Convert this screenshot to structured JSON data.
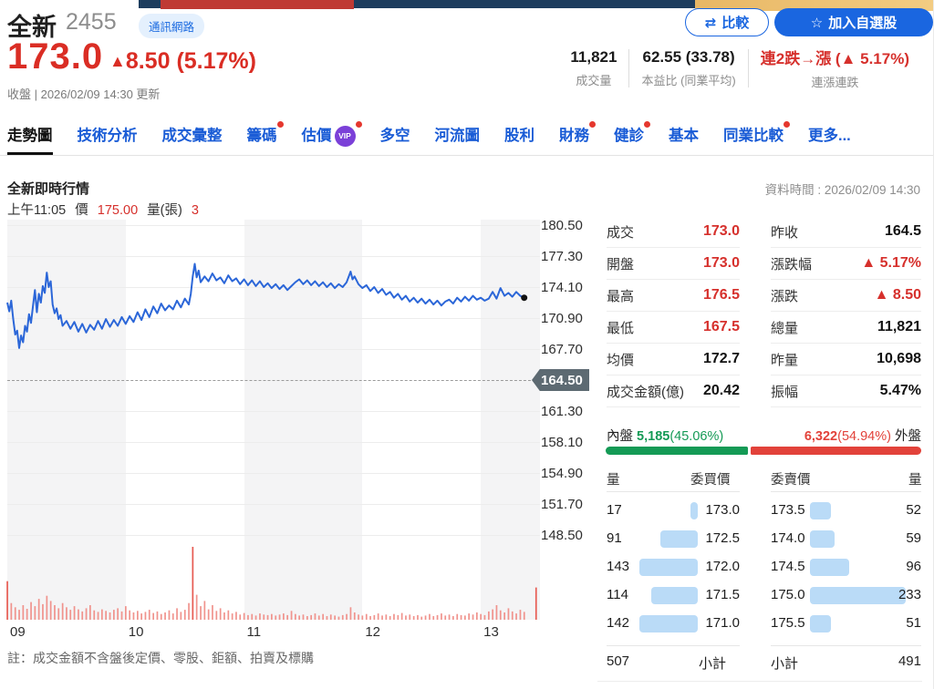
{
  "banner": {
    "navy": "#1d3d5e",
    "red": "#bf3a34",
    "orange": "#e8b765"
  },
  "header": {
    "stock_name": "全新",
    "stock_code": "2455",
    "industry_badge": "通訊網路",
    "compare_button": "比較",
    "watchlist_button": "加入自選股",
    "close_price": "173.0",
    "change_arrow": "▲",
    "change_value": "8.50",
    "change_pct": "(5.17%)",
    "update_note": "收盤 | 2026/02/09 14:30 更新",
    "stats": [
      {
        "value": "11,821",
        "label": "成交量",
        "red": false
      },
      {
        "value": "62.55 (33.78)",
        "label": "本益比 (同業平均)",
        "red": false
      },
      {
        "value": "連2跌→漲 (▲ 5.17%)",
        "label": "連漲連跌",
        "red": true
      }
    ]
  },
  "tabs": [
    {
      "label": "走勢圖",
      "active": true,
      "dot": false,
      "vip": false
    },
    {
      "label": "技術分析",
      "active": false,
      "dot": false,
      "vip": false
    },
    {
      "label": "成交彙整",
      "active": false,
      "dot": false,
      "vip": false
    },
    {
      "label": "籌碼",
      "active": false,
      "dot": true,
      "vip": false
    },
    {
      "label": "估價",
      "active": false,
      "dot": true,
      "vip": true
    },
    {
      "label": "多空",
      "active": false,
      "dot": false,
      "vip": false
    },
    {
      "label": "河流圖",
      "active": false,
      "dot": false,
      "vip": false
    },
    {
      "label": "股利",
      "active": false,
      "dot": false,
      "vip": false
    },
    {
      "label": "財務",
      "active": false,
      "dot": true,
      "vip": false
    },
    {
      "label": "健診",
      "active": false,
      "dot": true,
      "vip": false
    },
    {
      "label": "基本",
      "active": false,
      "dot": false,
      "vip": false
    },
    {
      "label": "同業比較",
      "active": false,
      "dot": true,
      "vip": false
    },
    {
      "label": "更多...",
      "active": false,
      "dot": false,
      "vip": false
    }
  ],
  "vip_text": "VIP",
  "chart_header": {
    "title": "全新即時行情",
    "data_time": "資料時間 : 2026/02/09 14:30",
    "tick": {
      "time": "上午11:05",
      "price_label": "價",
      "price": "175.00",
      "volume_label": "量(張)",
      "volume": "3"
    }
  },
  "chart_data": {
    "type": "line",
    "title": "全新即時行情 (intraday price + volume)",
    "x_ticks": [
      "09",
      "10",
      "11",
      "12",
      "13"
    ],
    "x_tick_minutes": [
      0,
      60,
      120,
      180,
      240
    ],
    "session_minutes": 270,
    "y_ticks": [
      "180.50",
      "177.30",
      "174.10",
      "170.90",
      "167.70",
      "164.50",
      "161.30",
      "158.10",
      "154.90",
      "151.70",
      "148.50"
    ],
    "y_max": 180.5,
    "y_step": 3.2,
    "prev_close": 164.5,
    "prev_close_label": "164.50",
    "last_price": 173.0,
    "day_open": 173.0,
    "day_high": 176.5,
    "day_low": 167.5,
    "price_line": [
      [
        0,
        172.5
      ],
      [
        1,
        171.6
      ],
      [
        2,
        172.7
      ],
      [
        3,
        170.8
      ],
      [
        4,
        169.2
      ],
      [
        5,
        169.6
      ],
      [
        6,
        167.8
      ],
      [
        7,
        169.1
      ],
      [
        8,
        168.4
      ],
      [
        9,
        170.1
      ],
      [
        10,
        169.5
      ],
      [
        11,
        171.3
      ],
      [
        12,
        170.4
      ],
      [
        13,
        172.1
      ],
      [
        14,
        173.8
      ],
      [
        15,
        171.5
      ],
      [
        16,
        173.4
      ],
      [
        17,
        172.5
      ],
      [
        18,
        174.2
      ],
      [
        19,
        173.5
      ],
      [
        20,
        175.6
      ],
      [
        21,
        174.1
      ],
      [
        22,
        174.7
      ],
      [
        23,
        172.3
      ],
      [
        24,
        171.4
      ],
      [
        25,
        171.9
      ],
      [
        26,
        170.8
      ],
      [
        27,
        171.2
      ],
      [
        28,
        170.1
      ],
      [
        30,
        170.6
      ],
      [
        32,
        169.8
      ],
      [
        34,
        170.5
      ],
      [
        36,
        169.5
      ],
      [
        38,
        170.3
      ],
      [
        40,
        169.4
      ],
      [
        42,
        170.2
      ],
      [
        44,
        169.7
      ],
      [
        46,
        170.6
      ],
      [
        48,
        169.8
      ],
      [
        50,
        170.8
      ],
      [
        52,
        170.0
      ],
      [
        54,
        170.7
      ],
      [
        56,
        170.1
      ],
      [
        58,
        171.0
      ],
      [
        60,
        170.3
      ],
      [
        62,
        171.1
      ],
      [
        64,
        170.5
      ],
      [
        66,
        171.5
      ],
      [
        68,
        170.7
      ],
      [
        70,
        171.8
      ],
      [
        72,
        171.0
      ],
      [
        74,
        172.1
      ],
      [
        76,
        171.4
      ],
      [
        78,
        172.4
      ],
      [
        80,
        171.7
      ],
      [
        82,
        172.2
      ],
      [
        84,
        171.8
      ],
      [
        86,
        172.7
      ],
      [
        88,
        172.0
      ],
      [
        90,
        172.9
      ],
      [
        92,
        172.3
      ],
      [
        93,
        173.4
      ],
      [
        94,
        175.2
      ],
      [
        95,
        176.5
      ],
      [
        96,
        175.1
      ],
      [
        97,
        175.8
      ],
      [
        98,
        174.6
      ],
      [
        100,
        175.2
      ],
      [
        102,
        174.7
      ],
      [
        104,
        175.5
      ],
      [
        106,
        174.8
      ],
      [
        108,
        175.1
      ],
      [
        110,
        174.5
      ],
      [
        112,
        175.3
      ],
      [
        114,
        174.7
      ],
      [
        116,
        175.0
      ],
      [
        118,
        174.4
      ],
      [
        120,
        174.9
      ],
      [
        122,
        174.3
      ],
      [
        124,
        174.8
      ],
      [
        126,
        174.2
      ],
      [
        128,
        174.7
      ],
      [
        130,
        174.1
      ],
      [
        132,
        174.5
      ],
      [
        134,
        174.0
      ],
      [
        136,
        174.4
      ],
      [
        138,
        173.9
      ],
      [
        140,
        174.3
      ],
      [
        142,
        173.8
      ],
      [
        144,
        174.2
      ],
      [
        146,
        174.6
      ],
      [
        148,
        174.9
      ],
      [
        150,
        174.4
      ],
      [
        152,
        174.8
      ],
      [
        154,
        174.3
      ],
      [
        156,
        174.7
      ],
      [
        158,
        174.2
      ],
      [
        160,
        174.6
      ],
      [
        162,
        174.1
      ],
      [
        164,
        174.5
      ],
      [
        166,
        174.0
      ],
      [
        168,
        174.4
      ],
      [
        170,
        174.1
      ],
      [
        172,
        174.6
      ],
      [
        174,
        175.7
      ],
      [
        175,
        174.9
      ],
      [
        176,
        175.2
      ],
      [
        178,
        174.4
      ],
      [
        180,
        174.0
      ],
      [
        182,
        174.3
      ],
      [
        184,
        173.7
      ],
      [
        186,
        174.1
      ],
      [
        188,
        173.5
      ],
      [
        190,
        173.9
      ],
      [
        192,
        173.3
      ],
      [
        194,
        173.6
      ],
      [
        196,
        173.0
      ],
      [
        198,
        173.4
      ],
      [
        200,
        172.8
      ],
      [
        202,
        173.2
      ],
      [
        204,
        172.6
      ],
      [
        206,
        173.0
      ],
      [
        208,
        172.5
      ],
      [
        210,
        172.9
      ],
      [
        212,
        172.4
      ],
      [
        214,
        172.8
      ],
      [
        216,
        172.3
      ],
      [
        218,
        172.7
      ],
      [
        220,
        172.2
      ],
      [
        222,
        172.6
      ],
      [
        224,
        172.8
      ],
      [
        226,
        172.4
      ],
      [
        228,
        173.0
      ],
      [
        230,
        172.6
      ],
      [
        232,
        173.1
      ],
      [
        234,
        172.7
      ],
      [
        236,
        173.2
      ],
      [
        238,
        172.8
      ],
      [
        240,
        173.0
      ],
      [
        242,
        172.7
      ],
      [
        244,
        172.9
      ],
      [
        246,
        173.6
      ],
      [
        248,
        172.9
      ],
      [
        250,
        174.0
      ],
      [
        252,
        173.2
      ],
      [
        254,
        173.5
      ],
      [
        256,
        173.1
      ],
      [
        258,
        173.6
      ],
      [
        260,
        173.2
      ],
      [
        262,
        173.0
      ]
    ],
    "volume_bars": [
      [
        0,
        370
      ],
      [
        2,
        160
      ],
      [
        4,
        120
      ],
      [
        6,
        95
      ],
      [
        8,
        140
      ],
      [
        10,
        105
      ],
      [
        12,
        170
      ],
      [
        14,
        130
      ],
      [
        16,
        200
      ],
      [
        18,
        150
      ],
      [
        20,
        230
      ],
      [
        22,
        180
      ],
      [
        24,
        140
      ],
      [
        26,
        110
      ],
      [
        28,
        160
      ],
      [
        30,
        120
      ],
      [
        32,
        95
      ],
      [
        34,
        130
      ],
      [
        36,
        100
      ],
      [
        38,
        80
      ],
      [
        40,
        110
      ],
      [
        42,
        140
      ],
      [
        44,
        90
      ],
      [
        46,
        75
      ],
      [
        48,
        100
      ],
      [
        50,
        85
      ],
      [
        52,
        70
      ],
      [
        54,
        95
      ],
      [
        56,
        110
      ],
      [
        58,
        80
      ],
      [
        60,
        130
      ],
      [
        62,
        90
      ],
      [
        64,
        70
      ],
      [
        66,
        85
      ],
      [
        68,
        60
      ],
      [
        70,
        75
      ],
      [
        72,
        95
      ],
      [
        74,
        65
      ],
      [
        76,
        80
      ],
      [
        78,
        55
      ],
      [
        80,
        70
      ],
      [
        82,
        90
      ],
      [
        84,
        60
      ],
      [
        86,
        110
      ],
      [
        88,
        75
      ],
      [
        90,
        95
      ],
      [
        92,
        160
      ],
      [
        94,
        700
      ],
      [
        96,
        240
      ],
      [
        98,
        130
      ],
      [
        100,
        180
      ],
      [
        102,
        100
      ],
      [
        104,
        140
      ],
      [
        106,
        85
      ],
      [
        108,
        110
      ],
      [
        110,
        70
      ],
      [
        112,
        90
      ],
      [
        114,
        60
      ],
      [
        116,
        75
      ],
      [
        118,
        50
      ],
      [
        120,
        65
      ],
      [
        122,
        45
      ],
      [
        124,
        55
      ],
      [
        126,
        40
      ],
      [
        128,
        60
      ],
      [
        130,
        50
      ],
      [
        132,
        45
      ],
      [
        134,
        55
      ],
      [
        136,
        40
      ],
      [
        138,
        50
      ],
      [
        140,
        60
      ],
      [
        142,
        45
      ],
      [
        144,
        85
      ],
      [
        146,
        55
      ],
      [
        148,
        40
      ],
      [
        150,
        50
      ],
      [
        152,
        35
      ],
      [
        154,
        45
      ],
      [
        156,
        60
      ],
      [
        158,
        40
      ],
      [
        160,
        55
      ],
      [
        162,
        35
      ],
      [
        164,
        50
      ],
      [
        166,
        40
      ],
      [
        168,
        30
      ],
      [
        170,
        45
      ],
      [
        172,
        55
      ],
      [
        174,
        120
      ],
      [
        176,
        70
      ],
      [
        178,
        50
      ],
      [
        180,
        40
      ],
      [
        182,
        55
      ],
      [
        184,
        35
      ],
      [
        186,
        45
      ],
      [
        188,
        60
      ],
      [
        190,
        40
      ],
      [
        192,
        50
      ],
      [
        194,
        35
      ],
      [
        196,
        55
      ],
      [
        198,
        45
      ],
      [
        200,
        65
      ],
      [
        202,
        40
      ],
      [
        204,
        50
      ],
      [
        206,
        35
      ],
      [
        208,
        45
      ],
      [
        210,
        30
      ],
      [
        212,
        40
      ],
      [
        214,
        55
      ],
      [
        216,
        35
      ],
      [
        218,
        45
      ],
      [
        220,
        60
      ],
      [
        222,
        40
      ],
      [
        224,
        50
      ],
      [
        226,
        35
      ],
      [
        228,
        55
      ],
      [
        230,
        45
      ],
      [
        232,
        40
      ],
      [
        234,
        60
      ],
      [
        236,
        50
      ],
      [
        238,
        70
      ],
      [
        240,
        55
      ],
      [
        242,
        45
      ],
      [
        244,
        80
      ],
      [
        246,
        100
      ],
      [
        248,
        140
      ],
      [
        250,
        90
      ],
      [
        252,
        70
      ],
      [
        254,
        110
      ],
      [
        256,
        80
      ],
      [
        258,
        60
      ],
      [
        260,
        95
      ],
      [
        262,
        75
      ],
      [
        268,
        310
      ]
    ],
    "colors": {
      "line": "#2b66d8",
      "volume": "#f0938d",
      "volume_hot": "#e75b52",
      "band": "#f4f4f5",
      "grid": "#ececec",
      "prev_close_tag": "#5d6a72"
    }
  },
  "quote_panel": {
    "rows": [
      {
        "left": {
          "label": "成交",
          "value": "173.0",
          "red": true
        },
        "right": {
          "label": "昨收",
          "value": "164.5",
          "red": false
        }
      },
      {
        "left": {
          "label": "開盤",
          "value": "173.0",
          "red": true
        },
        "right": {
          "label": "漲跌幅",
          "value": "▲ 5.17%",
          "red": true
        }
      },
      {
        "left": {
          "label": "最高",
          "value": "176.5",
          "red": true
        },
        "right": {
          "label": "漲跌",
          "value": "▲ 8.50",
          "red": true
        }
      },
      {
        "left": {
          "label": "最低",
          "value": "167.5",
          "red": true
        },
        "right": {
          "label": "總量",
          "value": "11,821",
          "red": false
        }
      },
      {
        "left": {
          "label": "均價",
          "value": "172.7",
          "red": false
        },
        "right": {
          "label": "昨量",
          "value": "10,698",
          "red": false
        }
      },
      {
        "left": {
          "label": "成交金額(億)",
          "value": "20.42",
          "red": false
        },
        "right": {
          "label": "振幅",
          "value": "5.47%",
          "red": false
        }
      }
    ]
  },
  "inner_outer": {
    "inner_label": "內盤",
    "inner_value": "5,185",
    "inner_pct": "(45.06%)",
    "outer_value": "6,322",
    "outer_pct": "(54.94%)",
    "outer_label": "外盤",
    "inner_ratio": 45.06,
    "green": "#149a55",
    "red": "#e2423a"
  },
  "order_book": {
    "headers": {
      "buy_qty": "量",
      "buy_price": "委買價",
      "sell_price": "委賣價",
      "sell_qty": "量"
    },
    "buy_rows": [
      {
        "qty": "17",
        "price": "173.0",
        "vol": 17
      },
      {
        "qty": "91",
        "price": "172.5",
        "vol": 91
      },
      {
        "qty": "143",
        "price": "172.0",
        "vol": 143
      },
      {
        "qty": "114",
        "price": "171.5",
        "vol": 114
      },
      {
        "qty": "142",
        "price": "171.0",
        "vol": 142
      }
    ],
    "sell_rows": [
      {
        "price": "173.5",
        "qty": "52",
        "vol": 52
      },
      {
        "price": "174.0",
        "qty": "59",
        "vol": 59
      },
      {
        "price": "174.5",
        "qty": "96",
        "vol": 96
      },
      {
        "price": "175.0",
        "qty": "233",
        "vol": 233
      },
      {
        "price": "175.5",
        "qty": "51",
        "vol": 51
      }
    ],
    "subtotal_label": "小計",
    "buy_subtotal": "507",
    "sell_subtotal": "491",
    "bar_color": "#badbf7"
  },
  "footnote": "註：成交金額不含盤後定價、零股、鉅額、拍賣及標購"
}
